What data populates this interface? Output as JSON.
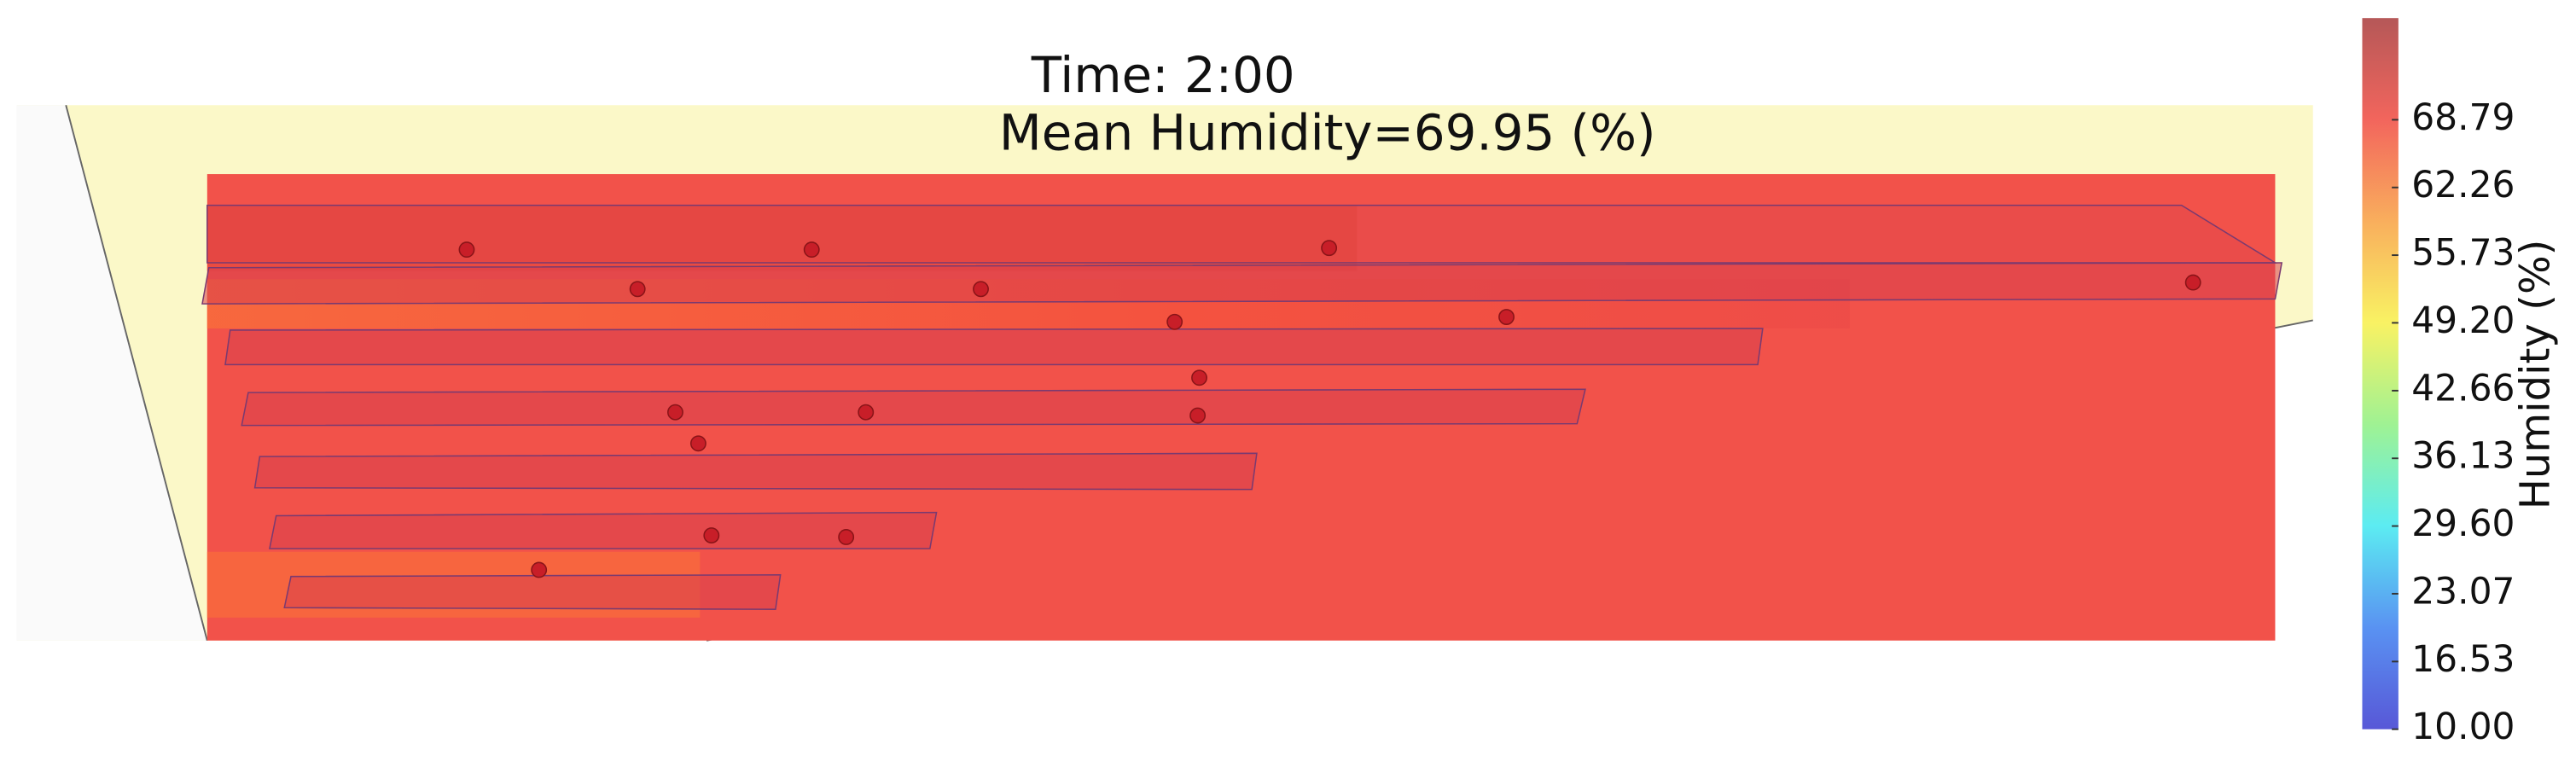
{
  "chart_data": {
    "type": "colorbar",
    "title": "Time: 2:00",
    "subtitle": "Mean Humidity=69.95 (%)",
    "colorbar_label": "Humidity (%)",
    "clim": [
      10,
      78.6
    ],
    "colormap": [
      "#3a3ad0",
      "#3c7ff0",
      "#3fe8f0",
      "#8ef080",
      "#f8f048",
      "#f8a040",
      "#f04a40",
      "#a83a3a"
    ],
    "cticks": [
      {
        "value": 10,
        "label": "10.00"
      },
      {
        "value": 16.53,
        "label": "16.53"
      },
      {
        "value": 23.07,
        "label": "23.07"
      },
      {
        "value": 29.6,
        "label": "29.60"
      },
      {
        "value": 36.13,
        "label": "36.13"
      },
      {
        "value": 42.66,
        "label": "42.66"
      },
      {
        "value": 49.2,
        "label": "49.20"
      },
      {
        "value": 55.73,
        "label": "55.73"
      },
      {
        "value": 62.26,
        "label": "62.26"
      },
      {
        "value": 68.79,
        "label": "68.79"
      }
    ]
  }
}
